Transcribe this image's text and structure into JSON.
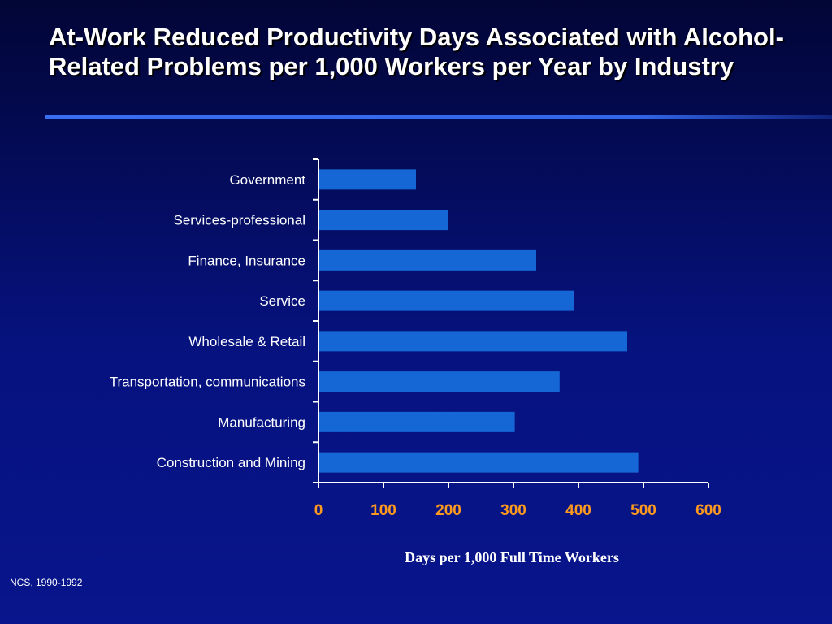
{
  "slide": {
    "title": "At-Work Reduced Productivity Days Associated with Alcohol-Related Problems per 1,000 Workers per Year by Industry",
    "source_note": "NCS, 1990-1992"
  },
  "colors": {
    "background": "#06127e",
    "bar": "#1567d6",
    "axis": "#ffffff",
    "tick_label": "#ff9a1f",
    "category_label": "#ffffff"
  },
  "chart_data": {
    "type": "bar",
    "orientation": "horizontal",
    "categories": [
      "Government",
      "Services-professional",
      "Finance, Insurance",
      "Service",
      "Wholesale & Retail",
      "Transportation, communications",
      "Manufacturing",
      "Construction and Mining"
    ],
    "values": [
      150,
      199,
      335,
      393,
      475,
      371,
      302,
      492
    ],
    "xlabel": "Days per 1,000 Full Time Workers",
    "ylabel": "",
    "xlim": [
      0,
      600
    ],
    "xticks": [
      0,
      100,
      200,
      300,
      400,
      500,
      600
    ],
    "grid": false,
    "legend": "none"
  }
}
